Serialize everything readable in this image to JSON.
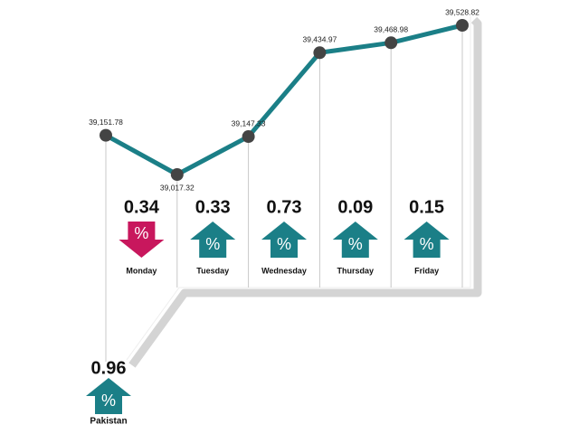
{
  "chart_data": {
    "type": "line",
    "categories": [
      null,
      "Monday",
      "Tuesday",
      "Wednesday",
      "Thursday",
      "Friday"
    ],
    "values": [
      39151.78,
      39017.32,
      39147.33,
      39434.97,
      39468.98,
      39528.82
    ],
    "value_labels": [
      "39,151.78",
      "39,017.32",
      "39,147.33",
      "39,434.97",
      "39,468.98",
      "39,528.82"
    ],
    "color": "#1b7f87",
    "daily_changes": {
      "values": [
        0.34,
        0.33,
        0.73,
        0.09,
        0.15
      ],
      "direction": [
        "down",
        "up",
        "up",
        "up",
        "up"
      ]
    },
    "summary": {
      "label": "Pakistan",
      "value": 0.96,
      "direction": "up"
    },
    "unit": "%",
    "up_color": "#1b7f87",
    "down_color": "#c8175d"
  }
}
